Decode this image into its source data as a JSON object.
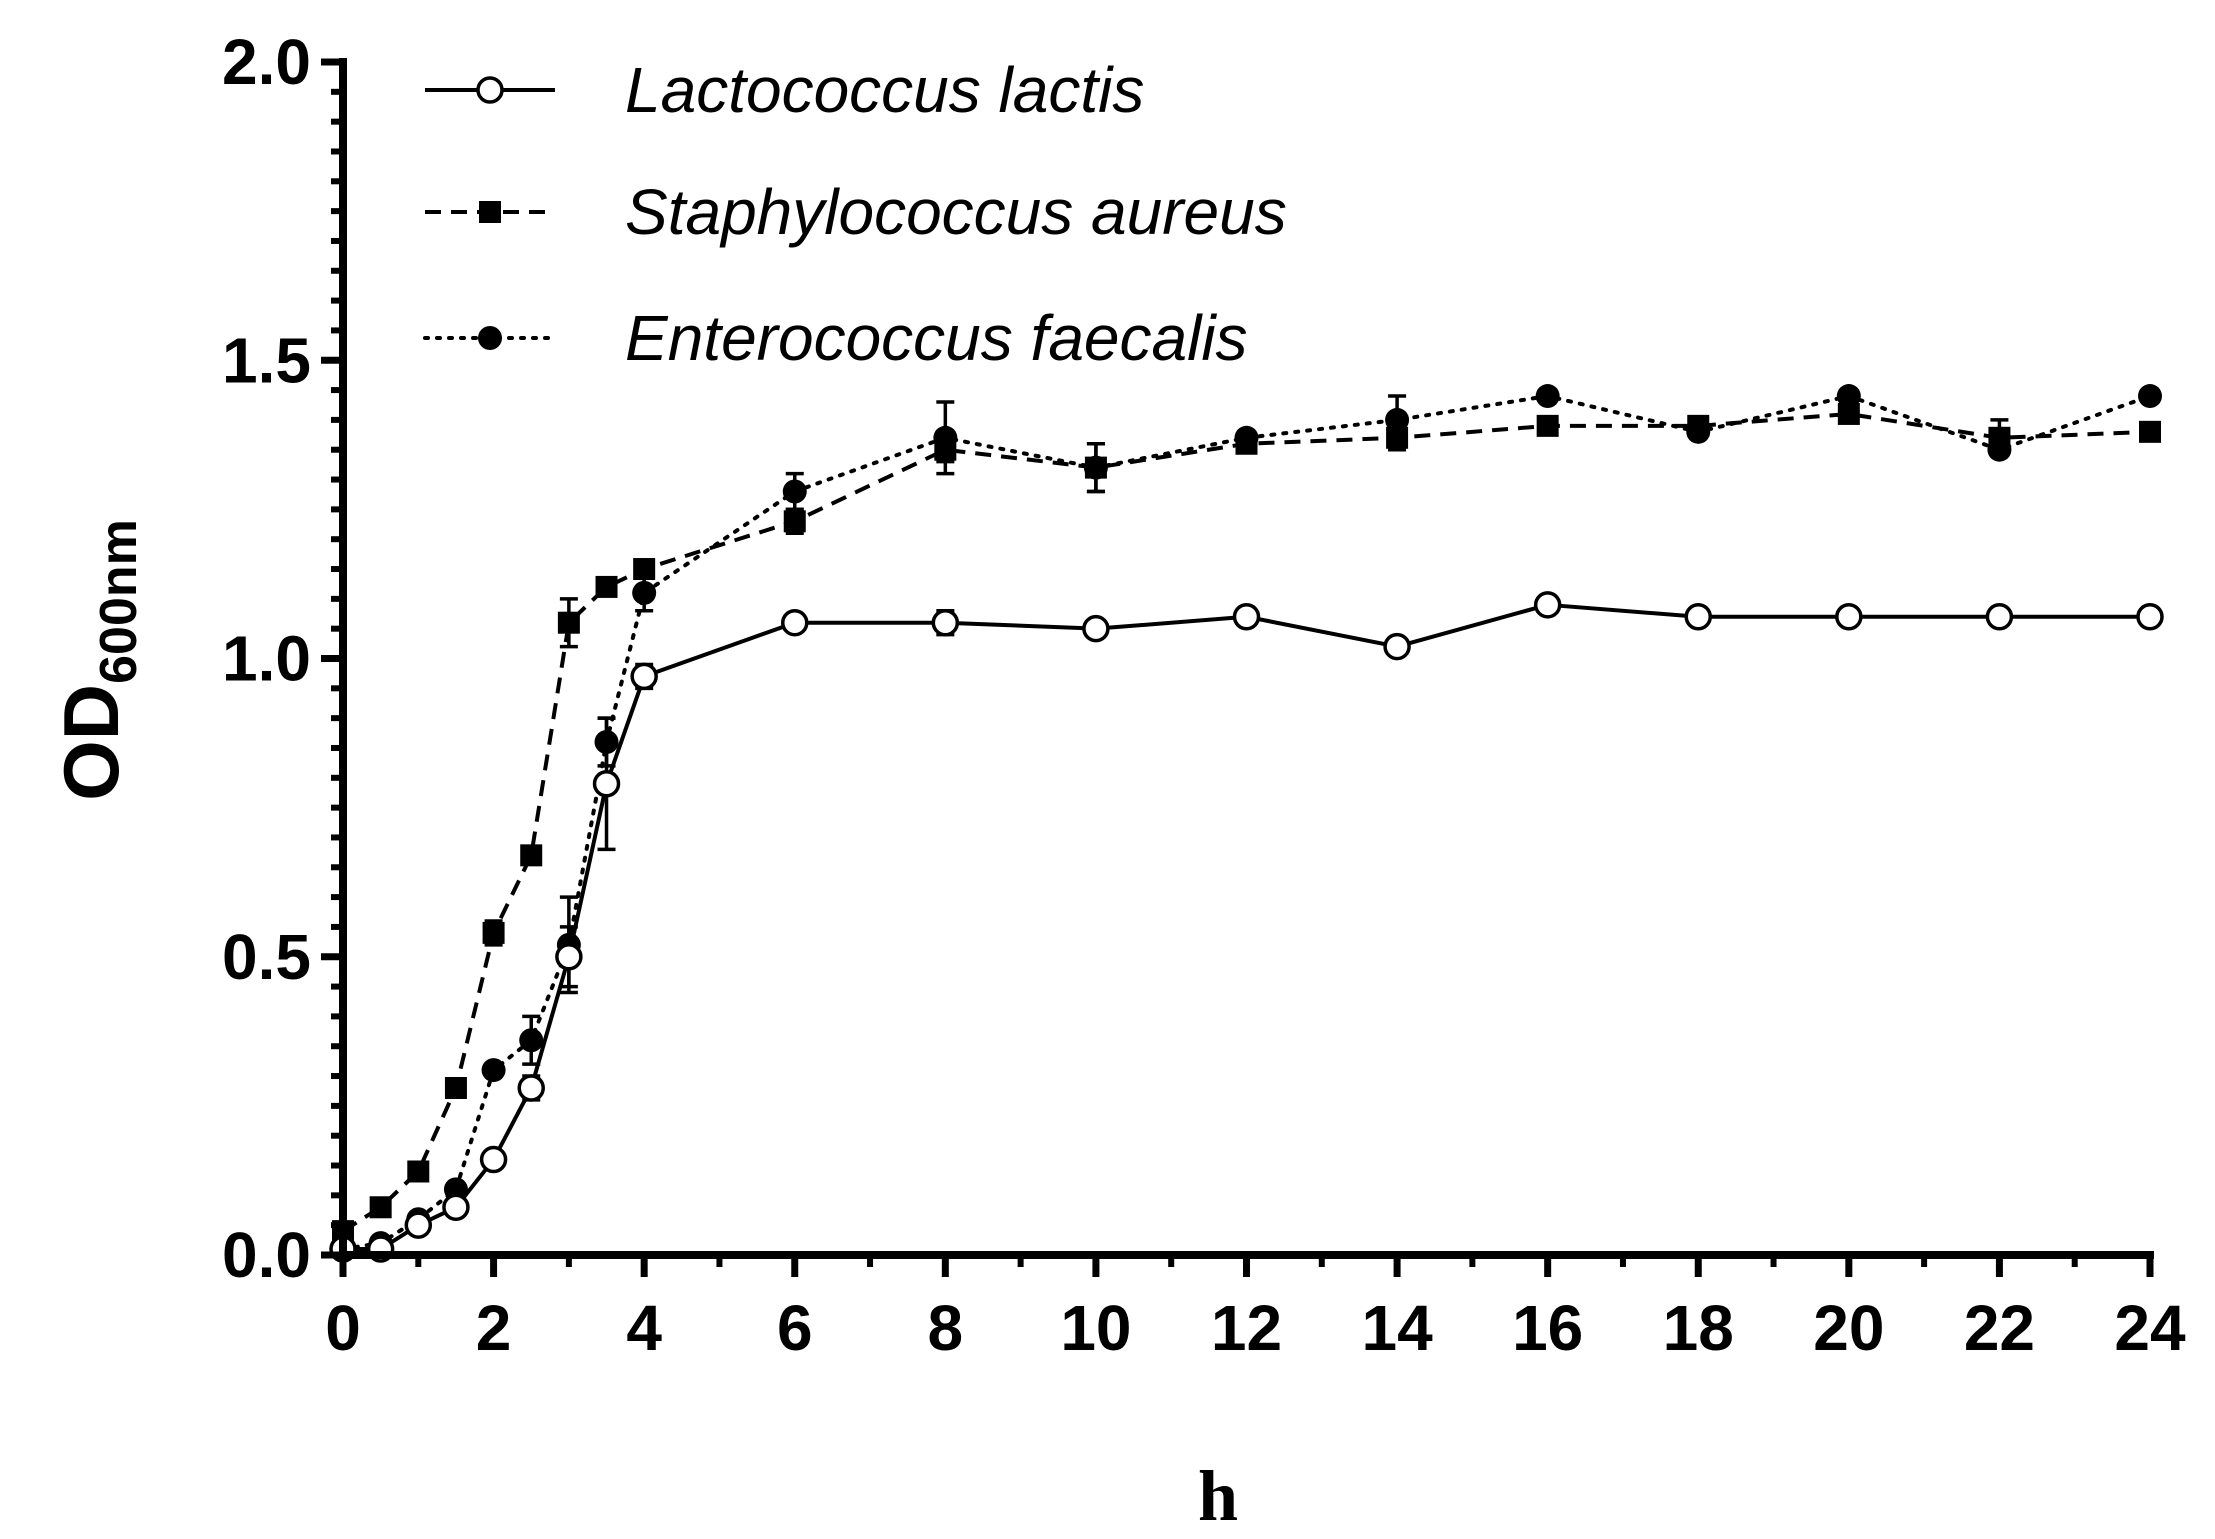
{
  "chart_data": {
    "type": "line",
    "xlabel": "h",
    "ylabel": {
      "main": "OD",
      "subscript": "600nm"
    },
    "xlim": [
      0,
      24
    ],
    "ylim": [
      0,
      2.0
    ],
    "x_ticks": [
      0,
      2,
      4,
      6,
      8,
      10,
      12,
      14,
      16,
      18,
      20,
      22,
      24
    ],
    "x_tick_labels": [
      "0",
      "2",
      "4",
      "6",
      "8",
      "10",
      "12",
      "14",
      "16",
      "18",
      "20",
      "22",
      "24"
    ],
    "y_ticks": [
      0,
      0.5,
      1.0,
      1.5,
      2.0
    ],
    "y_tick_labels": [
      "0.0",
      "0.5",
      "1.0",
      "1.5",
      "2.0"
    ],
    "grid": false,
    "legend_position": "top-left",
    "series": [
      {
        "name": "Lactococcus lactis",
        "line_style": "solid",
        "marker": "open-circle",
        "x": [
          0,
          0.5,
          1,
          1.5,
          2,
          2.5,
          3,
          3.5,
          4,
          6,
          8,
          10,
          12,
          14,
          16,
          18,
          20,
          22,
          24
        ],
        "y": [
          0.01,
          0.01,
          0.05,
          0.08,
          0.16,
          0.28,
          0.5,
          0.79,
          0.97,
          1.06,
          1.06,
          1.05,
          1.07,
          1.02,
          1.09,
          1.07,
          1.07,
          1.07,
          1.07
        ],
        "err": [
          0.005,
          0.005,
          0.01,
          0.01,
          0.01,
          0.02,
          0.05,
          0.11,
          0.02,
          0.01,
          0.02,
          0.01,
          0.01,
          0.01,
          0.01,
          0.01,
          0.01,
          0.01,
          0.01
        ]
      },
      {
        "name": "Staphylococcus aureus",
        "line_style": "dashed",
        "marker": "filled-square",
        "x": [
          0,
          0.5,
          1,
          1.5,
          2,
          2.5,
          3,
          3.5,
          4,
          6,
          8,
          10,
          12,
          14,
          16,
          18,
          20,
          22,
          24
        ],
        "y": [
          0.04,
          0.08,
          0.14,
          0.28,
          0.54,
          0.67,
          1.06,
          1.12,
          1.15,
          1.23,
          1.35,
          1.32,
          1.36,
          1.37,
          1.39,
          1.39,
          1.41,
          1.37,
          1.38
        ],
        "err": [
          0.01,
          0.01,
          0.01,
          0.01,
          0.02,
          0.01,
          0.04,
          0.01,
          0.01,
          0.02,
          0.02,
          0.04,
          0.01,
          0.02,
          0.01,
          0.01,
          0.01,
          0.03,
          0.01
        ]
      },
      {
        "name": "Enterococcus faecalis",
        "line_style": "dotted",
        "marker": "filled-circle",
        "x": [
          0,
          0.5,
          1,
          1.5,
          2,
          2.5,
          3,
          3.5,
          4,
          6,
          8,
          10,
          12,
          14,
          16,
          18,
          20,
          22,
          24
        ],
        "y": [
          0.01,
          0.02,
          0.06,
          0.11,
          0.31,
          0.36,
          0.52,
          0.86,
          1.11,
          1.28,
          1.37,
          1.32,
          1.37,
          1.4,
          1.44,
          1.38,
          1.44,
          1.35,
          1.44
        ],
        "err": [
          0.005,
          0.005,
          0.01,
          0.01,
          0.01,
          0.04,
          0.08,
          0.04,
          0.03,
          0.03,
          0.06,
          0.04,
          0.01,
          0.04,
          0.01,
          0.01,
          0.01,
          0.01,
          0.01
        ]
      }
    ]
  }
}
